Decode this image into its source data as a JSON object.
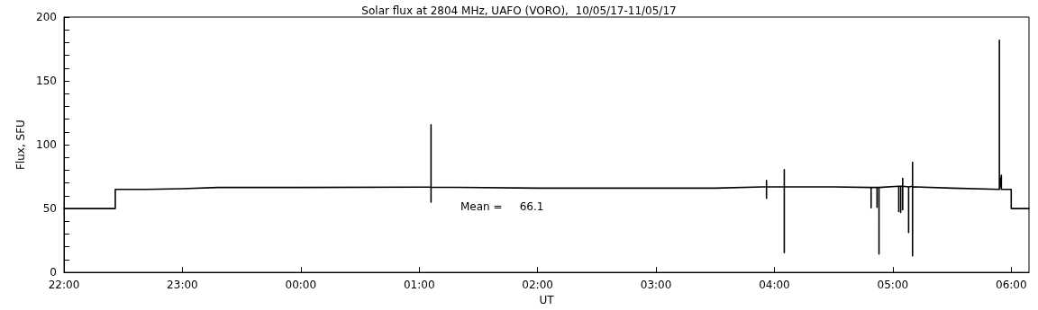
{
  "chart_data": {
    "type": "line",
    "title": "Solar flux at 2804 MHz, UAFO (VORO),  10/05/17-11/05/17",
    "xlabel": "UT",
    "ylabel": "Flux, SFU",
    "annotations": [
      "Mean =     66.1"
    ],
    "x": [
      "--05-10T22:00",
      "--05-10T22:26",
      "--05-10T22:26",
      "--05-10T22:42",
      "--05-10T23:00",
      "--05-10T23:18",
      "--05-11T00:00",
      "--05-11T01:00",
      "--05-11T01:06",
      "--05-11T01:06",
      "--05-11T01:06",
      "--05-11T01:06",
      "--05-11T02:00",
      "--05-11T03:00",
      "--05-11T03:30",
      "--05-11T03:54",
      "--05-11T03:56",
      "--05-11T03:56",
      "--05-11T03:56",
      "--05-11T03:56",
      "--05-11T04:05",
      "--05-11T04:05",
      "--05-11T04:05",
      "--05-11T04:05",
      "--05-11T04:30",
      "--05-11T04:49",
      "--05-11T04:49",
      "--05-11T04:49",
      "--05-11T04:52",
      "--05-11T04:52",
      "--05-11T04:52",
      "--05-11T04:53",
      "--05-11T04:53",
      "--05-11T04:53",
      "--05-11T05:03",
      "--05-11T05:03",
      "--05-11T05:03",
      "--05-11T05:04",
      "--05-11T05:04",
      "--05-11T05:04",
      "--05-11T05:05",
      "--05-11T05:05",
      "--05-11T05:05",
      "--05-11T05:05",
      "--05-11T05:08",
      "--05-11T05:08",
      "--05-11T05:08",
      "--05-11T05:10",
      "--05-11T05:10",
      "--05-11T05:10",
      "--05-11T05:10",
      "--05-11T05:30",
      "--05-11T05:54",
      "--05-11T05:54",
      "--05-11T05:54",
      "--05-11T05:55",
      "--05-11T05:55",
      "--05-11T06:00",
      "--05-11T06:00",
      "--05-11T06:09"
    ],
    "series": [
      {
        "color": "#000000",
        "values": [
          50,
          50,
          65,
          65,
          65.5,
          66.5,
          66.5,
          66.8,
          66.8,
          115.7,
          55,
          66.8,
          66,
          66,
          66,
          67,
          67,
          72,
          58,
          67,
          67,
          15.4,
          80.5,
          67,
          67,
          66.5,
          50.5,
          66.5,
          66.5,
          51,
          66.5,
          66.5,
          14.4,
          66.5,
          67.5,
          47.6,
          67.5,
          67.5,
          47,
          67.5,
          67.5,
          73.6,
          49,
          67.5,
          67,
          31.3,
          67,
          67.5,
          86.2,
          13,
          67,
          66,
          65,
          181.9,
          65,
          76,
          65,
          65,
          50,
          50
        ]
      }
    ],
    "xlim": [
      "--05-10T22:00",
      "--05-11T06:09"
    ],
    "xticks": [
      {
        "value": "--05-10T22:00",
        "label": "22:00"
      },
      {
        "value": "--05-10T23:00",
        "label": "23:00"
      },
      {
        "value": "--05-11T00:00",
        "label": "00:00"
      },
      {
        "value": "--05-11T01:00",
        "label": "01:00"
      },
      {
        "value": "--05-11T02:00",
        "label": "02:00"
      },
      {
        "value": "--05-11T03:00",
        "label": "03:00"
      },
      {
        "value": "--05-11T04:00",
        "label": "04:00"
      },
      {
        "value": "--05-11T05:00",
        "label": "05:00"
      },
      {
        "value": "--05-11T06:00",
        "label": "06:00"
      }
    ],
    "ylim": [
      0,
      200
    ],
    "yticks": [
      0,
      {
        "value": 10,
        "label": null
      },
      {
        "value": 20,
        "label": null
      },
      {
        "value": 30,
        "label": null
      },
      {
        "value": 40,
        "label": null
      },
      50,
      {
        "value": 60,
        "label": null
      },
      {
        "value": 70,
        "label": null
      },
      {
        "value": 80,
        "label": null
      },
      {
        "value": 90,
        "label": null
      },
      100,
      {
        "value": 110,
        "label": null
      },
      {
        "value": 120,
        "label": null
      },
      {
        "value": 130,
        "label": null
      },
      {
        "value": 140,
        "label": null
      },
      150,
      {
        "value": 160,
        "label": null
      },
      {
        "value": 170,
        "label": null
      },
      {
        "value": 180,
        "label": null
      },
      {
        "value": 190,
        "label": null
      },
      200
    ],
    "grid": false,
    "marker": "none",
    "line_style": "solid"
  }
}
